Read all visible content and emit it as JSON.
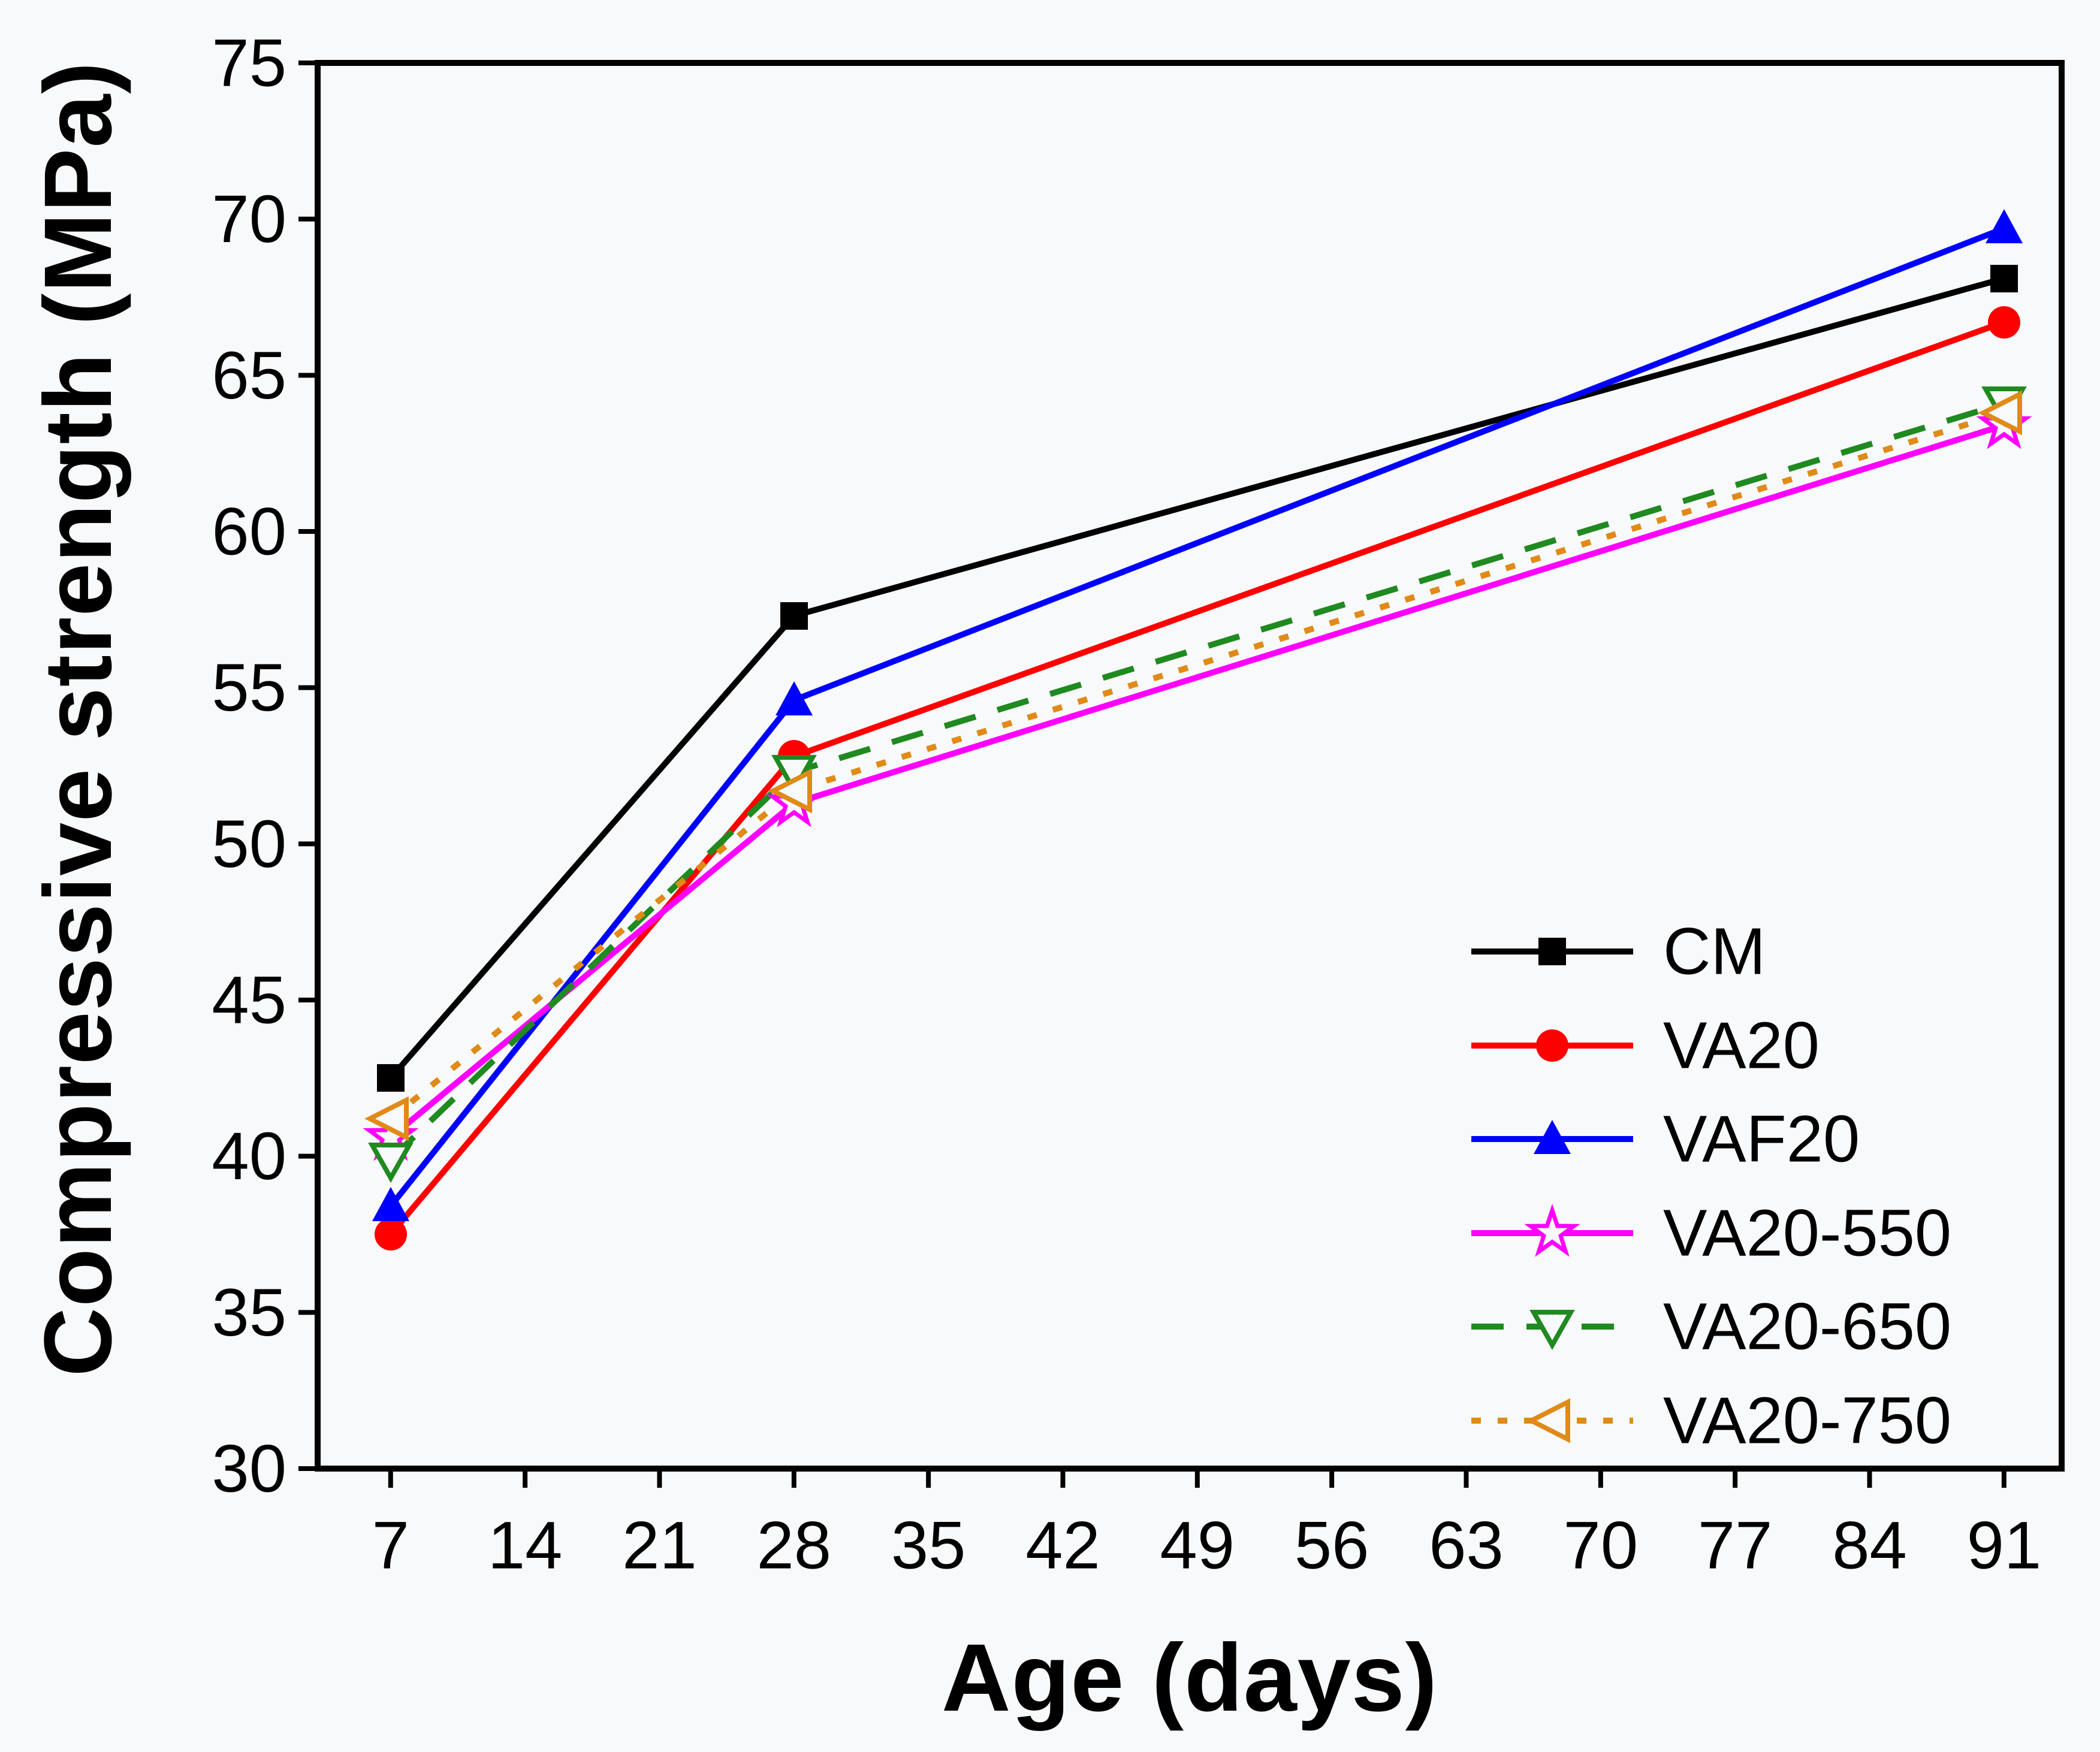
{
  "figure": {
    "background_color": "#f8f9fa",
    "frame_color": "#000000"
  },
  "chart_data": {
    "type": "line",
    "title": "",
    "xlabel": "Age (days)",
    "ylabel": "Compressive strength (MPa)",
    "x": [
      7,
      28,
      91
    ],
    "x_ticks": [
      7,
      14,
      21,
      28,
      35,
      42,
      49,
      56,
      63,
      70,
      77,
      84,
      91
    ],
    "y_ticks": [
      30,
      35,
      40,
      45,
      50,
      55,
      60,
      65,
      70,
      75
    ],
    "xlim": [
      3.2,
      94
    ],
    "ylim": [
      30,
      75
    ],
    "grid": false,
    "legend_position": "inside-lower-right",
    "series": [
      {
        "name": "CM",
        "color": "#000000",
        "line_style": "solid",
        "marker": "square-filled",
        "values": [
          42.5,
          57.3,
          68.1
        ]
      },
      {
        "name": "VA20",
        "color": "#ff0000",
        "line_style": "solid",
        "marker": "circle-filled",
        "values": [
          37.5,
          52.8,
          66.7
        ]
      },
      {
        "name": "VAF20",
        "color": "#0000ff",
        "line_style": "solid",
        "marker": "triangle-up-filled",
        "values": [
          38.4,
          54.6,
          69.7
        ]
      },
      {
        "name": "VA20-550",
        "color": "#ff00ff",
        "line_style": "solid",
        "marker": "star-open",
        "values": [
          40.6,
          51.3,
          63.4
        ]
      },
      {
        "name": "VA20-650",
        "color": "#1f8a1f",
        "line_style": "dashed",
        "marker": "triangle-down-open",
        "values": [
          39.9,
          52.3,
          64.1
        ]
      },
      {
        "name": "VA20-750",
        "color": "#e08a17",
        "line_style": "dotted",
        "marker": "triangle-left-open",
        "values": [
          41.2,
          51.7,
          63.8
        ]
      }
    ]
  }
}
